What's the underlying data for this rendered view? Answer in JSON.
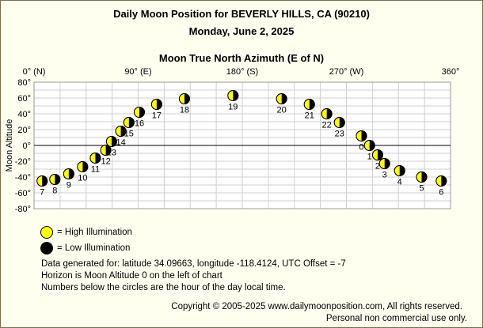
{
  "header": {
    "title": "Daily Moon Position for BEVERLY HILLS, CA (90210)",
    "date": "Monday, June 2, 2025"
  },
  "colors": {
    "background": "#fffff0",
    "border": "#7d6f4e",
    "grid": "#cfcfcf",
    "horizon": "#000000",
    "illuminated": "#ffff00",
    "dark": "#000000"
  },
  "chart_data": {
    "type": "scatter",
    "title": "Moon True North Azimuth (E of N)",
    "xlabel": "Moon True North Azimuth (E of N)",
    "ylabel": "Moon Altitude",
    "xlim": [
      0,
      360
    ],
    "ylim": [
      -80,
      80
    ],
    "grid": true,
    "x_tick_labels": [
      {
        "value": 0,
        "label": "0° (N)"
      },
      {
        "value": 90,
        "label": "90° (E)"
      },
      {
        "value": 180,
        "label": "180° (S)"
      },
      {
        "value": 270,
        "label": "270° (W)"
      },
      {
        "value": 360,
        "label": "360°"
      }
    ],
    "y_tick_labels": [
      "80°",
      "60°",
      "40°",
      "20°",
      "0°",
      "-20°",
      "-40°",
      "-60°",
      "-80°"
    ],
    "y_tick_values": [
      80,
      60,
      40,
      20,
      0,
      -20,
      -40,
      -60,
      -80
    ],
    "points": [
      {
        "hour": "7",
        "azimuth": 7,
        "altitude": -45
      },
      {
        "hour": "8",
        "azimuth": 18,
        "altitude": -43
      },
      {
        "hour": "9",
        "azimuth": 30,
        "altitude": -36
      },
      {
        "hour": "10",
        "azimuth": 42,
        "altitude": -27
      },
      {
        "hour": "11",
        "azimuth": 53,
        "altitude": -16
      },
      {
        "hour": "12",
        "azimuth": 62,
        "altitude": -6
      },
      {
        "hour": "13",
        "azimuth": 67,
        "altitude": 5
      },
      {
        "hour": "14",
        "azimuth": 75,
        "altitude": 18
      },
      {
        "hour": "15",
        "azimuth": 82,
        "altitude": 29
      },
      {
        "hour": "16",
        "azimuth": 91,
        "altitude": 42
      },
      {
        "hour": "17",
        "azimuth": 106,
        "altitude": 52
      },
      {
        "hour": "18",
        "azimuth": 130,
        "altitude": 59
      },
      {
        "hour": "19",
        "azimuth": 172,
        "altitude": 63
      },
      {
        "hour": "20",
        "azimuth": 214,
        "altitude": 59
      },
      {
        "hour": "21",
        "azimuth": 238,
        "altitude": 52
      },
      {
        "hour": "22",
        "azimuth": 253,
        "altitude": 40
      },
      {
        "hour": "23",
        "azimuth": 264,
        "altitude": 29
      },
      {
        "hour": "0",
        "azimuth": 283,
        "altitude": 12
      },
      {
        "hour": "1",
        "azimuth": 290,
        "altitude": 0
      },
      {
        "hour": "2",
        "azimuth": 297,
        "altitude": -12
      },
      {
        "hour": "3",
        "azimuth": 303,
        "altitude": -23
      },
      {
        "hour": "4",
        "azimuth": 316,
        "altitude": -32
      },
      {
        "hour": "5",
        "azimuth": 335,
        "altitude": -40
      },
      {
        "hour": "6",
        "azimuth": 352,
        "altitude": -45
      }
    ]
  },
  "legend": {
    "high": "= High Illumination",
    "low": "= Low Illumination"
  },
  "info": {
    "line1": "Data generated for: latitude 34.09663, longitude -118.4124, UTC Offset = -7",
    "line2": "Horizon is Moon Altitude 0 on the left of chart",
    "line3": "Numbers below the circles are the hour of the day local time."
  },
  "footer": {
    "copyright": "Copyright © 2005-2025 www.dailymoonposition.com, All rights reserved.",
    "notice": "Personal non commercial use only."
  }
}
